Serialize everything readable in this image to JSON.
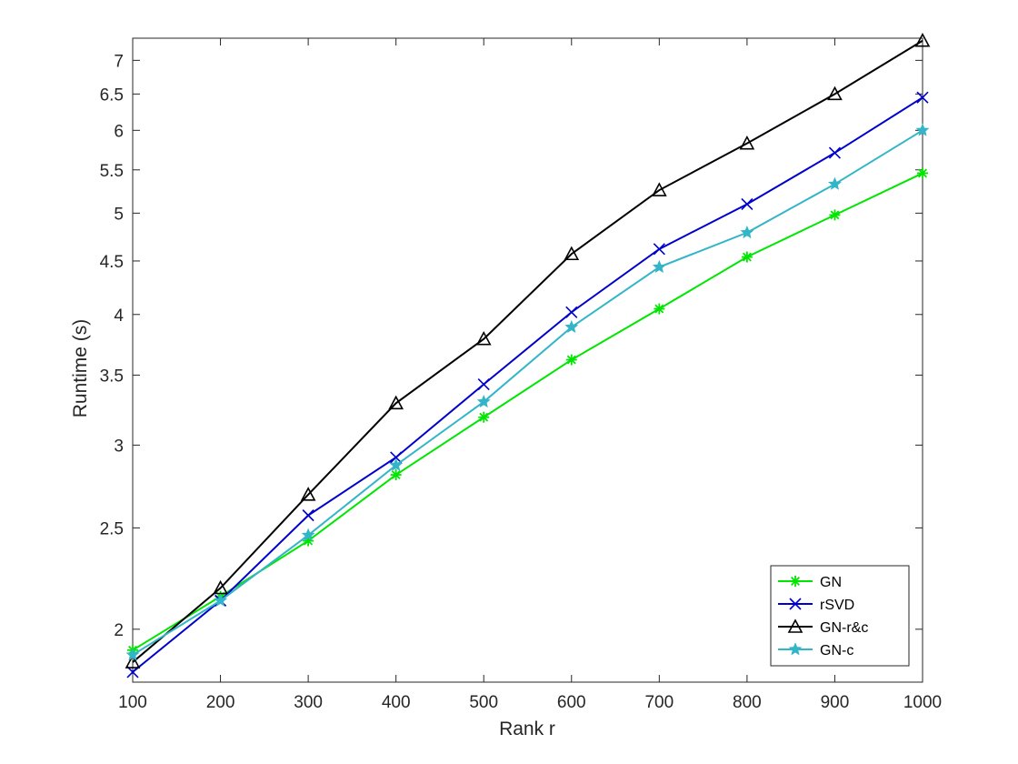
{
  "chart_data": {
    "type": "line",
    "title": "",
    "xlabel": "Rank r",
    "ylabel": "Runtime (s)",
    "y_scale": "log",
    "xlim": [
      100,
      1000
    ],
    "ylim": [
      1.78,
      7.35
    ],
    "x_ticks": [
      100,
      200,
      300,
      400,
      500,
      600,
      700,
      800,
      900,
      1000
    ],
    "x_tick_labels": [
      "100",
      "200",
      "300",
      "400",
      "500",
      "600",
      "700",
      "800",
      "900",
      "1000"
    ],
    "y_ticks": [
      2,
      2.5,
      3,
      3.5,
      4,
      4.5,
      5,
      5.5,
      6,
      6.5,
      7
    ],
    "y_tick_labels": [
      "2",
      "2.5",
      "3",
      "3.5",
      "4",
      "4.5",
      "5",
      "5.5",
      "6",
      "6.5",
      "7"
    ],
    "grid": false,
    "legend_position": "bottom-right",
    "x": [
      100,
      200,
      300,
      400,
      500,
      600,
      700,
      800,
      900,
      1000
    ],
    "series": [
      {
        "name": "GN",
        "color": "#00e600",
        "marker": "asterisk",
        "values": [
          1.91,
          2.15,
          2.43,
          2.81,
          3.19,
          3.62,
          4.05,
          4.54,
          4.98,
          5.46
        ]
      },
      {
        "name": "rSVD",
        "color": "#0000cc",
        "marker": "x",
        "values": [
          1.82,
          2.13,
          2.57,
          2.92,
          3.43,
          4.02,
          4.62,
          5.1,
          5.71,
          6.45
        ]
      },
      {
        "name": "GN-r&c",
        "color": "#000000",
        "marker": "triangle",
        "values": [
          1.86,
          2.19,
          2.69,
          3.29,
          3.79,
          4.57,
          5.26,
          5.83,
          6.5,
          7.31
        ]
      },
      {
        "name": "GN-c",
        "color": "#33b5c8",
        "marker": "star",
        "values": [
          1.89,
          2.13,
          2.46,
          2.87,
          3.3,
          3.89,
          4.44,
          4.79,
          5.33,
          6.0
        ]
      }
    ]
  }
}
